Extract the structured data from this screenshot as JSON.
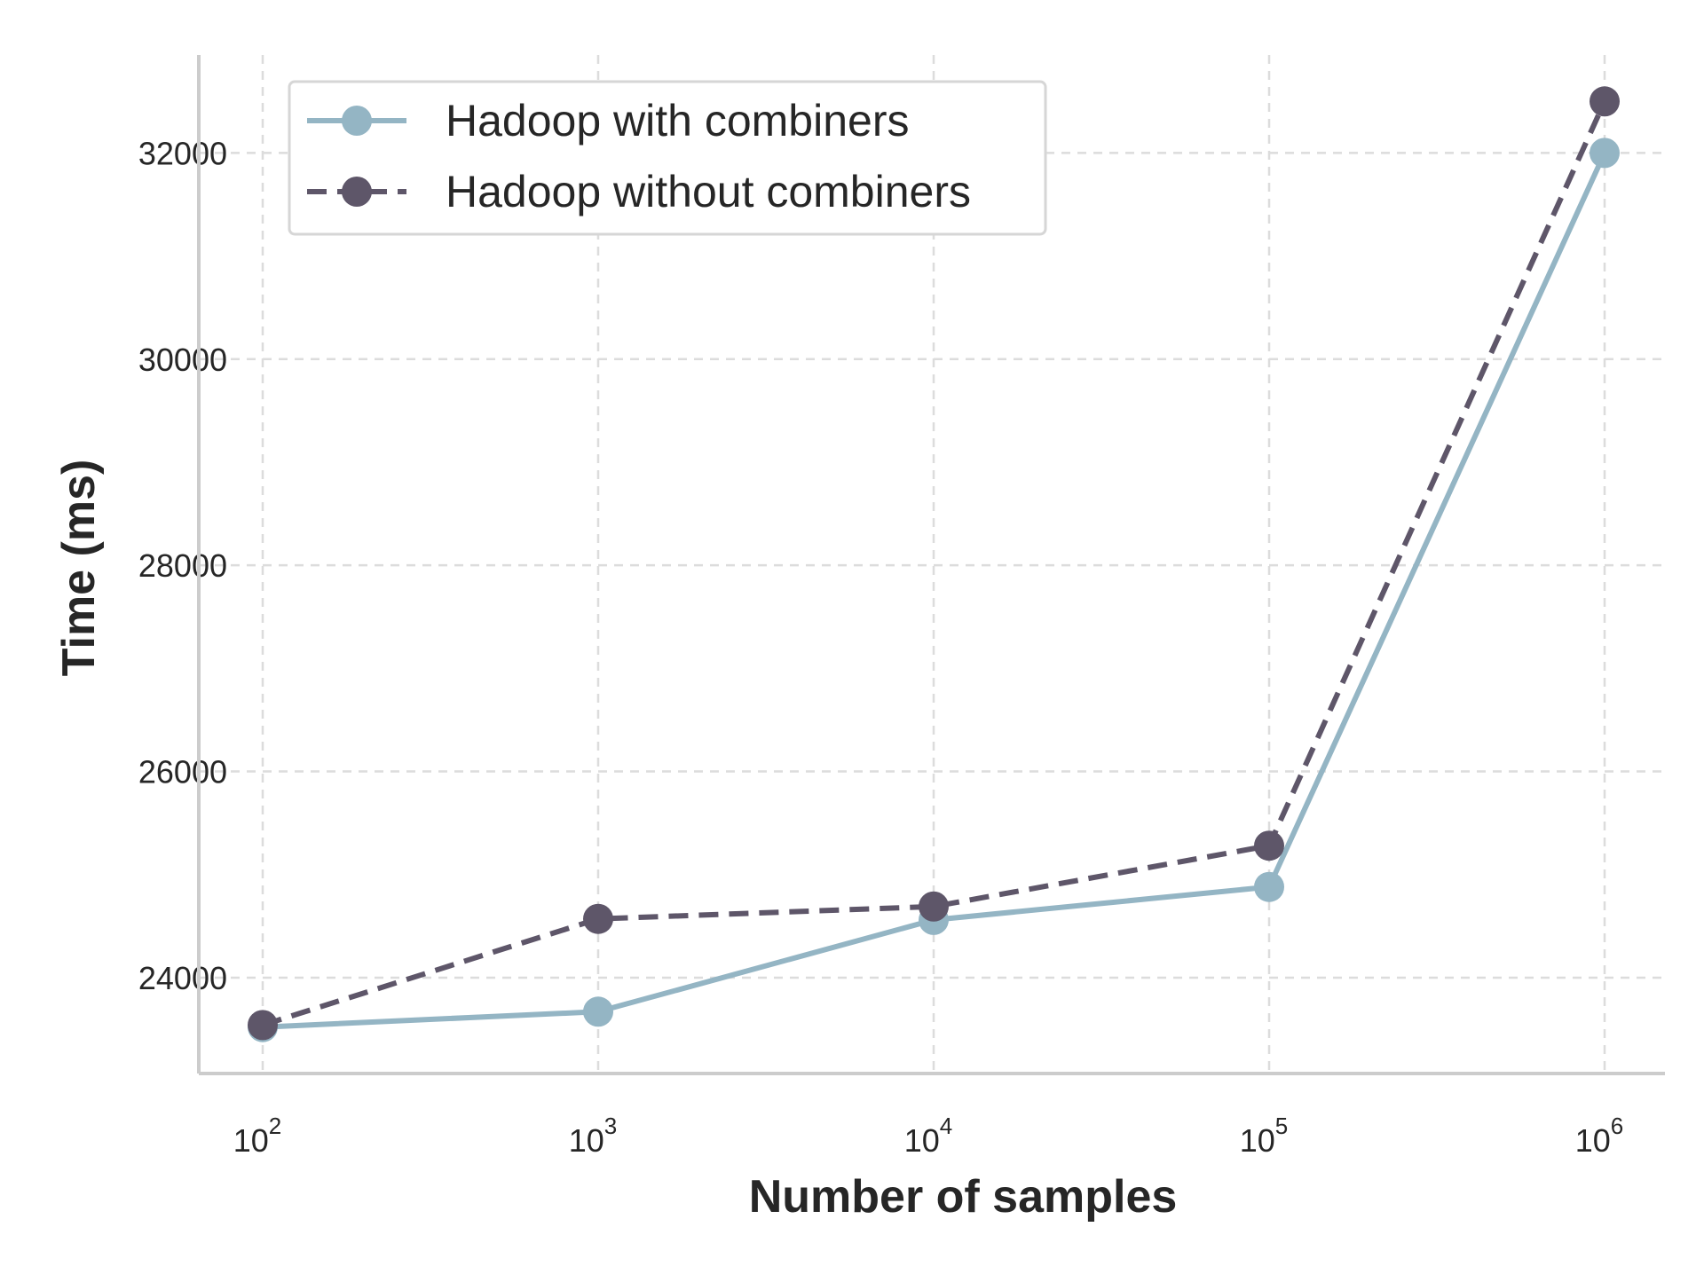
{
  "chart_data": {
    "type": "line",
    "xlabel": "Number of samples",
    "ylabel": "Time (ms)",
    "x": [
      100,
      1000,
      10000,
      100000,
      1000000
    ],
    "x_scale": "log",
    "x_ticks": [
      {
        "base": "10",
        "exp": "2"
      },
      {
        "base": "10",
        "exp": "3"
      },
      {
        "base": "10",
        "exp": "4"
      },
      {
        "base": "10",
        "exp": "5"
      },
      {
        "base": "10",
        "exp": "6"
      }
    ],
    "y_ticks": [
      "24000",
      "26000",
      "28000",
      "30000",
      "32000"
    ],
    "ylim": [
      23070,
      32950
    ],
    "grid": true,
    "legend_position": "upper-left",
    "series": [
      {
        "name": "Hadoop with combiners",
        "values": [
          23520,
          23670,
          24560,
          24880,
          32000
        ],
        "color": "#94b5c4",
        "linestyle": "solid"
      },
      {
        "name": "Hadoop without combiners",
        "values": [
          23540,
          24570,
          24690,
          25280,
          32500
        ],
        "color": "#5e5669",
        "linestyle": "dashed"
      }
    ]
  }
}
